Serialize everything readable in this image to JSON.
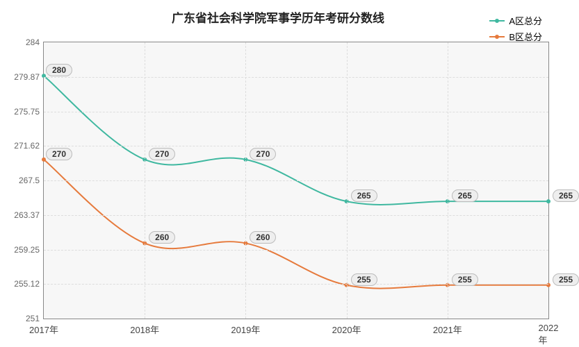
{
  "chart": {
    "type": "line",
    "title": "广东省社会科学院军事学历年考研分数线",
    "title_fontsize": 17,
    "title_color": "#222222",
    "background_color": "#ffffff",
    "plot_background": "#f7f7f7",
    "grid_color": "#dddddd",
    "border_color": "#888888",
    "x": {
      "labels": [
        "2017年",
        "2018年",
        "2019年",
        "2020年",
        "2021年",
        "2022年"
      ]
    },
    "y": {
      "min": 251,
      "max": 284,
      "ticks": [
        251,
        255.12,
        259.25,
        263.37,
        267.5,
        271.62,
        275.75,
        279.87,
        284
      ],
      "tick_labels": [
        "251",
        "255.12",
        "259.25",
        "263.37",
        "267.5",
        "271.62",
        "275.75",
        "279.87",
        "284"
      ]
    },
    "series": [
      {
        "name": "A区总分",
        "color": "#3fb8a0",
        "line_width": 2,
        "values": [
          280,
          270,
          270,
          265,
          265,
          265
        ],
        "point_labels": [
          "280",
          "270",
          "270",
          "265",
          "265",
          "265"
        ]
      },
      {
        "name": "B区总分",
        "color": "#e67a3c",
        "line_width": 2,
        "values": [
          270,
          260,
          260,
          255,
          255,
          255
        ],
        "point_labels": [
          "270",
          "260",
          "260",
          "255",
          "255",
          "255"
        ]
      }
    ]
  }
}
